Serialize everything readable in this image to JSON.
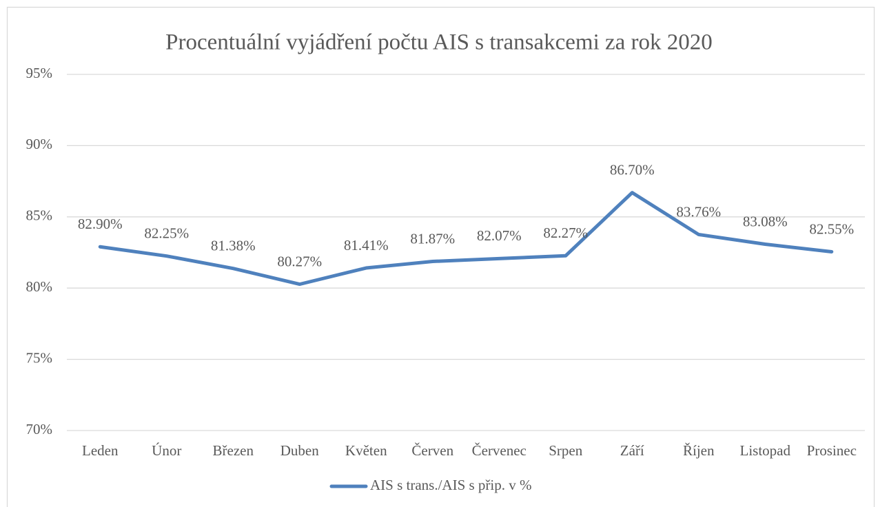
{
  "chart_data": {
    "type": "line",
    "title": "Procentuální vyjádření počtu AIS s transakcemi za rok 2020",
    "categories": [
      "Leden",
      "Únor",
      "Březen",
      "Duben",
      "Květen",
      "Červen",
      "Červenec",
      "Srpen",
      "Září",
      "Říjen",
      "Listopad",
      "Prosinec"
    ],
    "series": [
      {
        "name": "AIS s trans./AIS s přip. v %",
        "color": "#4f81bd",
        "values": [
          82.9,
          82.25,
          81.38,
          80.27,
          81.41,
          81.87,
          82.07,
          82.27,
          86.7,
          83.76,
          83.08,
          82.55
        ],
        "value_labels": [
          "82.90%",
          "82.25%",
          "81.38%",
          "80.27%",
          "81.41%",
          "81.87%",
          "82.07%",
          "82.27%",
          "86.70%",
          "83.76%",
          "83.08%",
          "82.55%"
        ]
      }
    ],
    "ylim": [
      70,
      95
    ],
    "yticks": [
      {
        "value": 70,
        "label": "70%"
      },
      {
        "value": 75,
        "label": "75%"
      },
      {
        "value": 80,
        "label": "80%"
      },
      {
        "value": 85,
        "label": "85%"
      },
      {
        "value": 90,
        "label": "90%"
      },
      {
        "value": 95,
        "label": "95%"
      }
    ],
    "grid": true,
    "legend": "bottom"
  }
}
